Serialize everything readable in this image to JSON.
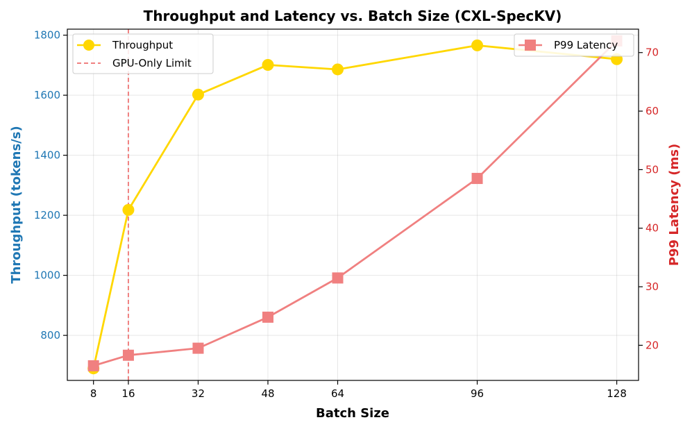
{
  "chart_data": {
    "type": "line",
    "title": "Throughput and Latency vs. Batch Size (CXL-SpecKV)",
    "xlabel": "Batch Size",
    "ylabel_left": "Throughput (tokens/s)",
    "ylabel_right": "P99 Latency (ms)",
    "x": [
      8,
      16,
      32,
      48,
      64,
      96,
      128
    ],
    "x_ticks": [
      8,
      16,
      32,
      48,
      64,
      96,
      128
    ],
    "xlim": [
      2,
      133
    ],
    "ylim_left": [
      650,
      1820
    ],
    "yticks_left": [
      800,
      1000,
      1200,
      1400,
      1600,
      1800
    ],
    "ylim_right": [
      14,
      74
    ],
    "yticks_right": [
      20,
      30,
      40,
      50,
      60,
      70
    ],
    "grid": true,
    "series": [
      {
        "name": "Throughput",
        "axis": "left",
        "marker": "circle",
        "color": "#FFD700",
        "values": [
          690,
          1218,
          1602,
          1701,
          1686,
          1766,
          1720
        ]
      },
      {
        "name": "P99 Latency",
        "axis": "right",
        "marker": "square",
        "color": "#F08080",
        "values": [
          16.5,
          18.3,
          19.5,
          24.8,
          31.5,
          48.5,
          72.0
        ]
      }
    ],
    "reference_lines": [
      {
        "name": "GPU-Only Limit",
        "x": 16,
        "style": "dashed",
        "color": "#F08080"
      }
    ],
    "left_axis_color": "#1f77b4",
    "right_axis_color": "#d62728",
    "legend_left": {
      "position": "top-left",
      "entries": [
        "Throughput",
        "GPU-Only Limit"
      ]
    },
    "legend_right": {
      "position": "top-right",
      "entries": [
        "P99 Latency"
      ]
    }
  }
}
